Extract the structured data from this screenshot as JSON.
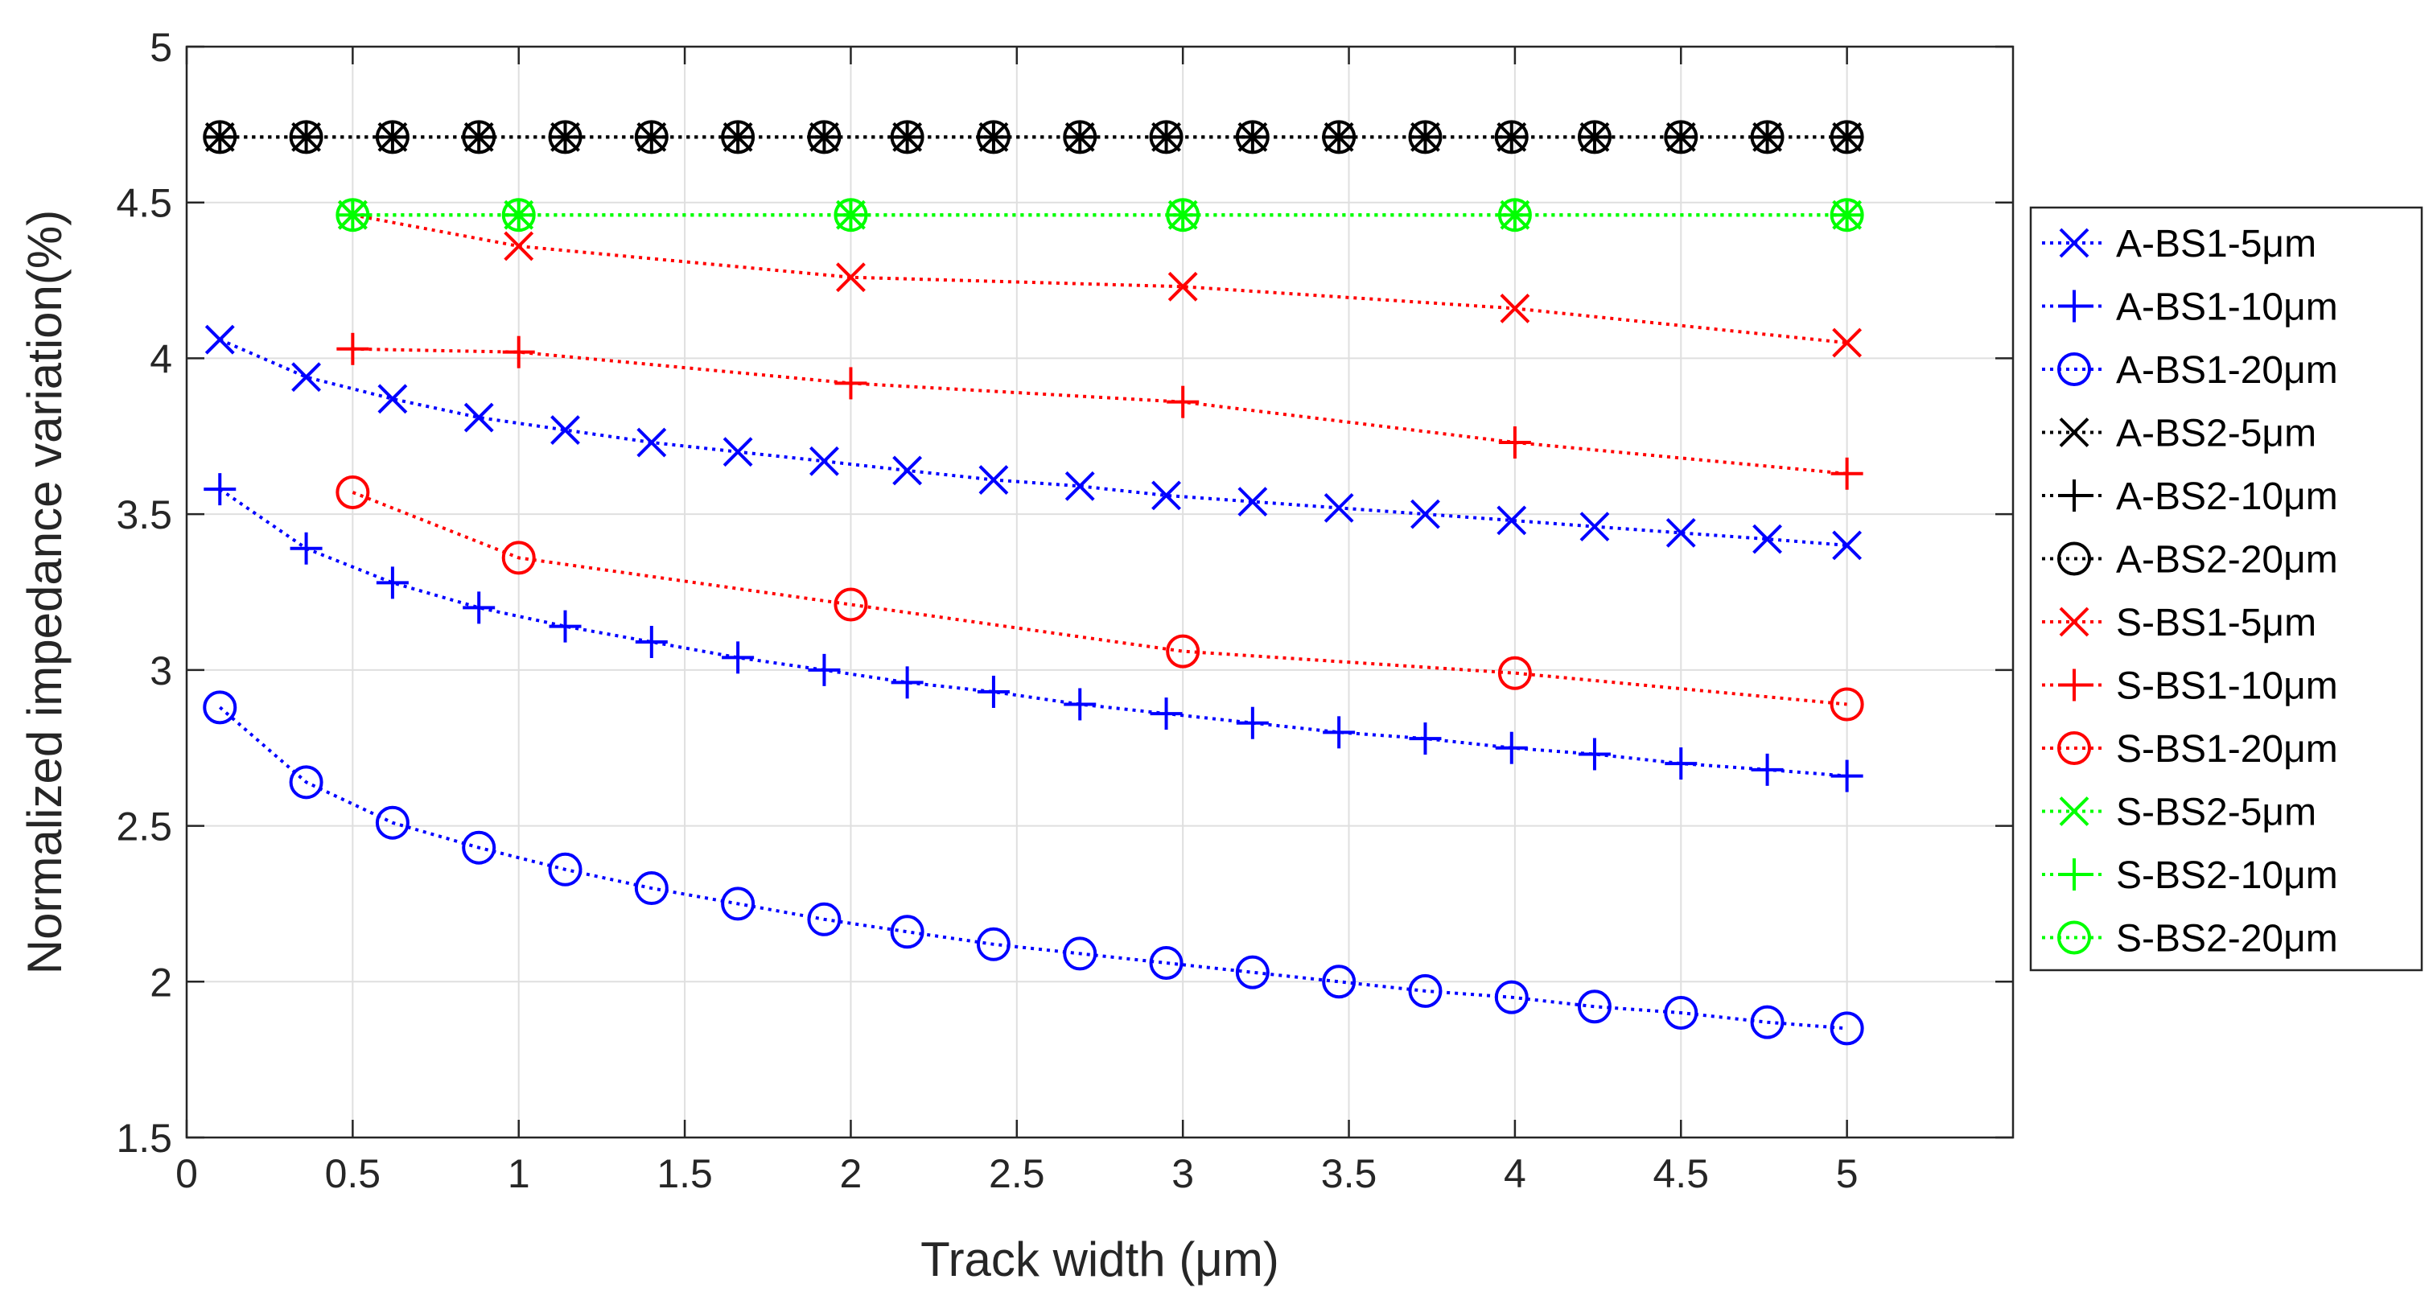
{
  "chart_data": {
    "type": "line",
    "title": "",
    "xlabel": "Track width (μm)",
    "ylabel": "Normalized impedance variation(%)",
    "xlim": [
      0,
      5.5
    ],
    "ylim": [
      1.5,
      5
    ],
    "grid": true,
    "legend_position": "outside-right",
    "x_ticks": [
      0,
      0.5,
      1,
      1.5,
      2,
      2.5,
      3,
      3.5,
      4,
      4.5,
      5
    ],
    "x_tick_labels": [
      "0",
      "0.5",
      "1",
      "1.5",
      "2",
      "2.5",
      "3",
      "3.5",
      "4",
      "4.5",
      "5"
    ],
    "y_ticks": [
      1.5,
      2,
      2.5,
      3,
      3.5,
      4,
      4.5,
      5
    ],
    "y_tick_labels": [
      "1.5",
      "2",
      "2.5",
      "3",
      "3.5",
      "4",
      "4.5",
      "5"
    ],
    "series": [
      {
        "name": "A-BS1-5μm",
        "color": "#0000ff",
        "marker": "x",
        "x": [
          0.1,
          0.36,
          0.62,
          0.88,
          1.14,
          1.4,
          1.66,
          1.92,
          2.17,
          2.43,
          2.69,
          2.95,
          3.21,
          3.47,
          3.73,
          3.99,
          4.24,
          4.5,
          4.76,
          5.0
        ],
        "values": [
          4.06,
          3.94,
          3.87,
          3.81,
          3.77,
          3.73,
          3.7,
          3.67,
          3.64,
          3.61,
          3.59,
          3.56,
          3.54,
          3.52,
          3.5,
          3.48,
          3.46,
          3.44,
          3.42,
          3.4
        ]
      },
      {
        "name": "A-BS1-10μm",
        "color": "#0000ff",
        "marker": "+",
        "x": [
          0.1,
          0.36,
          0.62,
          0.88,
          1.14,
          1.4,
          1.66,
          1.92,
          2.17,
          2.43,
          2.69,
          2.95,
          3.21,
          3.47,
          3.73,
          3.99,
          4.24,
          4.5,
          4.76,
          5.0
        ],
        "values": [
          3.58,
          3.39,
          3.28,
          3.2,
          3.14,
          3.09,
          3.04,
          3.0,
          2.96,
          2.93,
          2.89,
          2.86,
          2.83,
          2.8,
          2.78,
          2.75,
          2.73,
          2.7,
          2.68,
          2.66
        ]
      },
      {
        "name": "A-BS1-20μm",
        "color": "#0000ff",
        "marker": "o",
        "x": [
          0.1,
          0.36,
          0.62,
          0.88,
          1.14,
          1.4,
          1.66,
          1.92,
          2.17,
          2.43,
          2.69,
          2.95,
          3.21,
          3.47,
          3.73,
          3.99,
          4.24,
          4.5,
          4.76,
          5.0
        ],
        "values": [
          2.88,
          2.64,
          2.51,
          2.43,
          2.36,
          2.3,
          2.25,
          2.2,
          2.16,
          2.12,
          2.09,
          2.06,
          2.03,
          2.0,
          1.97,
          1.95,
          1.92,
          1.9,
          1.87,
          1.85
        ]
      },
      {
        "name": "A-BS2-5μm",
        "color": "#000000",
        "marker": "x",
        "x": [
          0.1,
          0.36,
          0.62,
          0.88,
          1.14,
          1.4,
          1.66,
          1.92,
          2.17,
          2.43,
          2.69,
          2.95,
          3.21,
          3.47,
          3.73,
          3.99,
          4.24,
          4.5,
          4.76,
          5.0
        ],
        "values": [
          4.71,
          4.71,
          4.71,
          4.71,
          4.71,
          4.71,
          4.71,
          4.71,
          4.71,
          4.71,
          4.71,
          4.71,
          4.71,
          4.71,
          4.71,
          4.71,
          4.71,
          4.71,
          4.71,
          4.71
        ]
      },
      {
        "name": "A-BS2-10μm",
        "color": "#000000",
        "marker": "+",
        "x": [
          0.1,
          0.36,
          0.62,
          0.88,
          1.14,
          1.4,
          1.66,
          1.92,
          2.17,
          2.43,
          2.69,
          2.95,
          3.21,
          3.47,
          3.73,
          3.99,
          4.24,
          4.5,
          4.76,
          5.0
        ],
        "values": [
          4.71,
          4.71,
          4.71,
          4.71,
          4.71,
          4.71,
          4.71,
          4.71,
          4.71,
          4.71,
          4.71,
          4.71,
          4.71,
          4.71,
          4.71,
          4.71,
          4.71,
          4.71,
          4.71,
          4.71
        ]
      },
      {
        "name": "A-BS2-20μm",
        "color": "#000000",
        "marker": "o",
        "x": [
          0.1,
          0.36,
          0.62,
          0.88,
          1.14,
          1.4,
          1.66,
          1.92,
          2.17,
          2.43,
          2.69,
          2.95,
          3.21,
          3.47,
          3.73,
          3.99,
          4.24,
          4.5,
          4.76,
          5.0
        ],
        "values": [
          4.71,
          4.71,
          4.71,
          4.71,
          4.71,
          4.71,
          4.71,
          4.71,
          4.71,
          4.71,
          4.71,
          4.71,
          4.71,
          4.71,
          4.71,
          4.71,
          4.71,
          4.71,
          4.71,
          4.71
        ]
      },
      {
        "name": "S-BS1-5μm",
        "color": "#ff0000",
        "marker": "x",
        "x": [
          0.5,
          1,
          2,
          3,
          4,
          5
        ],
        "values": [
          4.46,
          4.36,
          4.26,
          4.23,
          4.16,
          4.05
        ]
      },
      {
        "name": "S-BS1-10μm",
        "color": "#ff0000",
        "marker": "+",
        "x": [
          0.5,
          1,
          2,
          3,
          4,
          5
        ],
        "values": [
          4.03,
          4.02,
          3.92,
          3.86,
          3.73,
          3.63
        ]
      },
      {
        "name": "S-BS1-20μm",
        "color": "#ff0000",
        "marker": "o",
        "x": [
          0.5,
          1,
          2,
          3,
          4,
          5
        ],
        "values": [
          3.57,
          3.36,
          3.21,
          3.06,
          2.99,
          2.89
        ]
      },
      {
        "name": "S-BS2-5μm",
        "color": "#00ff00",
        "marker": "x",
        "x": [
          0.5,
          1,
          2,
          3,
          4,
          5
        ],
        "values": [
          4.46,
          4.46,
          4.46,
          4.46,
          4.46,
          4.46
        ]
      },
      {
        "name": "S-BS2-10μm",
        "color": "#00ff00",
        "marker": "+",
        "x": [
          0.5,
          1,
          2,
          3,
          4,
          5
        ],
        "values": [
          4.46,
          4.46,
          4.46,
          4.46,
          4.46,
          4.46
        ]
      },
      {
        "name": "S-BS2-20μm",
        "color": "#00ff00",
        "marker": "o",
        "x": [
          0.5,
          1,
          2,
          3,
          4,
          5
        ],
        "values": [
          4.46,
          4.46,
          4.46,
          4.46,
          4.46,
          4.46
        ]
      }
    ]
  }
}
